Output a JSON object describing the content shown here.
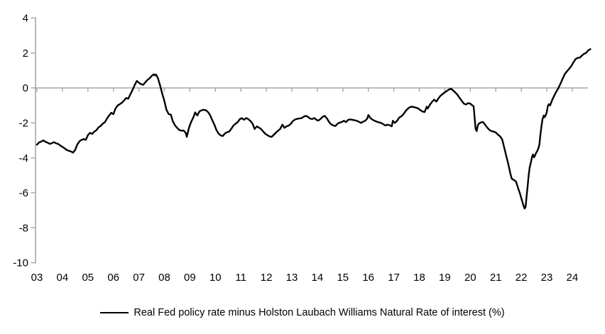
{
  "chart_data": {
    "type": "line",
    "title": "",
    "legend_label": "Real Fed policy rate minus Holston Laubach Williams Natural Rate of interest (%)",
    "legend_position": "bottom-center",
    "line_color": "#000000",
    "axis_color": "#a6a6a6",
    "text_color": "#000000",
    "grid": "zero-line-only",
    "x_range": [
      2003,
      2024.75
    ],
    "y_range": [
      -10,
      4
    ],
    "y_ticks": [
      4,
      2,
      0,
      -2,
      -4,
      -6,
      -8,
      -10
    ],
    "x_tick_labels": [
      "03",
      "04",
      "05",
      "06",
      "07",
      "08",
      "09",
      "10",
      "11",
      "12",
      "13",
      "14",
      "15",
      "16",
      "17",
      "18",
      "19",
      "20",
      "21",
      "22",
      "23",
      "24"
    ],
    "x_tick_years": [
      2003,
      2004,
      2005,
      2006,
      2007,
      2008,
      2009,
      2010,
      2011,
      2012,
      2013,
      2014,
      2015,
      2016,
      2017,
      2018,
      2019,
      2020,
      2021,
      2022,
      2023,
      2024
    ],
    "series": [
      {
        "name": "Real Fed policy rate minus Holston Laubach Williams Natural Rate of interest (%)",
        "points": [
          [
            2003.0,
            -3.25
          ],
          [
            2003.08,
            -3.12
          ],
          [
            2003.17,
            -3.07
          ],
          [
            2003.25,
            -3.0
          ],
          [
            2003.33,
            -3.08
          ],
          [
            2003.42,
            -3.13
          ],
          [
            2003.5,
            -3.2
          ],
          [
            2003.58,
            -3.17
          ],
          [
            2003.67,
            -3.1
          ],
          [
            2003.75,
            -3.17
          ],
          [
            2003.83,
            -3.2
          ],
          [
            2003.92,
            -3.3
          ],
          [
            2004.0,
            -3.37
          ],
          [
            2004.08,
            -3.45
          ],
          [
            2004.17,
            -3.55
          ],
          [
            2004.25,
            -3.6
          ],
          [
            2004.33,
            -3.63
          ],
          [
            2004.42,
            -3.7
          ],
          [
            2004.5,
            -3.55
          ],
          [
            2004.58,
            -3.25
          ],
          [
            2004.67,
            -3.05
          ],
          [
            2004.75,
            -2.97
          ],
          [
            2004.83,
            -2.93
          ],
          [
            2004.92,
            -2.97
          ],
          [
            2005.0,
            -2.7
          ],
          [
            2005.08,
            -2.57
          ],
          [
            2005.17,
            -2.63
          ],
          [
            2005.25,
            -2.5
          ],
          [
            2005.33,
            -2.42
          ],
          [
            2005.42,
            -2.25
          ],
          [
            2005.5,
            -2.17
          ],
          [
            2005.58,
            -2.05
          ],
          [
            2005.67,
            -1.95
          ],
          [
            2005.75,
            -1.75
          ],
          [
            2005.83,
            -1.58
          ],
          [
            2005.92,
            -1.42
          ],
          [
            2006.0,
            -1.5
          ],
          [
            2006.08,
            -1.18
          ],
          [
            2006.17,
            -1.0
          ],
          [
            2006.25,
            -0.93
          ],
          [
            2006.33,
            -0.85
          ],
          [
            2006.42,
            -0.72
          ],
          [
            2006.5,
            -0.57
          ],
          [
            2006.58,
            -0.62
          ],
          [
            2006.67,
            -0.35
          ],
          [
            2006.75,
            -0.12
          ],
          [
            2006.83,
            0.15
          ],
          [
            2006.92,
            0.4
          ],
          [
            2007.0,
            0.3
          ],
          [
            2007.08,
            0.22
          ],
          [
            2007.17,
            0.18
          ],
          [
            2007.25,
            0.32
          ],
          [
            2007.33,
            0.45
          ],
          [
            2007.42,
            0.55
          ],
          [
            2007.5,
            0.68
          ],
          [
            2007.58,
            0.78
          ],
          [
            2007.63,
            0.72
          ],
          [
            2007.67,
            0.77
          ],
          [
            2007.75,
            0.55
          ],
          [
            2007.83,
            0.15
          ],
          [
            2007.92,
            -0.35
          ],
          [
            2008.0,
            -0.75
          ],
          [
            2008.08,
            -1.25
          ],
          [
            2008.17,
            -1.5
          ],
          [
            2008.25,
            -1.52
          ],
          [
            2008.33,
            -1.9
          ],
          [
            2008.42,
            -2.15
          ],
          [
            2008.5,
            -2.28
          ],
          [
            2008.58,
            -2.4
          ],
          [
            2008.67,
            -2.45
          ],
          [
            2008.75,
            -2.43
          ],
          [
            2008.83,
            -2.55
          ],
          [
            2008.88,
            -2.8
          ],
          [
            2008.96,
            -2.3
          ],
          [
            2009.04,
            -1.98
          ],
          [
            2009.13,
            -1.7
          ],
          [
            2009.21,
            -1.4
          ],
          [
            2009.29,
            -1.58
          ],
          [
            2009.38,
            -1.33
          ],
          [
            2009.46,
            -1.28
          ],
          [
            2009.54,
            -1.25
          ],
          [
            2009.63,
            -1.28
          ],
          [
            2009.71,
            -1.38
          ],
          [
            2009.79,
            -1.55
          ],
          [
            2009.88,
            -1.85
          ],
          [
            2009.96,
            -2.1
          ],
          [
            2010.04,
            -2.4
          ],
          [
            2010.13,
            -2.62
          ],
          [
            2010.21,
            -2.72
          ],
          [
            2010.29,
            -2.75
          ],
          [
            2010.38,
            -2.6
          ],
          [
            2010.46,
            -2.53
          ],
          [
            2010.54,
            -2.5
          ],
          [
            2010.63,
            -2.33
          ],
          [
            2010.71,
            -2.15
          ],
          [
            2010.79,
            -2.05
          ],
          [
            2010.88,
            -1.95
          ],
          [
            2010.96,
            -1.78
          ],
          [
            2011.04,
            -1.73
          ],
          [
            2011.13,
            -1.82
          ],
          [
            2011.21,
            -1.72
          ],
          [
            2011.29,
            -1.78
          ],
          [
            2011.38,
            -1.9
          ],
          [
            2011.46,
            -2.05
          ],
          [
            2011.54,
            -2.35
          ],
          [
            2011.63,
            -2.2
          ],
          [
            2011.71,
            -2.27
          ],
          [
            2011.79,
            -2.35
          ],
          [
            2011.88,
            -2.5
          ],
          [
            2011.96,
            -2.63
          ],
          [
            2012.04,
            -2.7
          ],
          [
            2012.13,
            -2.78
          ],
          [
            2012.21,
            -2.8
          ],
          [
            2012.29,
            -2.68
          ],
          [
            2012.38,
            -2.55
          ],
          [
            2012.46,
            -2.45
          ],
          [
            2012.54,
            -2.35
          ],
          [
            2012.63,
            -2.1
          ],
          [
            2012.71,
            -2.28
          ],
          [
            2012.79,
            -2.2
          ],
          [
            2012.88,
            -2.15
          ],
          [
            2012.96,
            -2.05
          ],
          [
            2013.04,
            -1.9
          ],
          [
            2013.13,
            -1.8
          ],
          [
            2013.21,
            -1.77
          ],
          [
            2013.29,
            -1.75
          ],
          [
            2013.38,
            -1.73
          ],
          [
            2013.46,
            -1.65
          ],
          [
            2013.54,
            -1.6
          ],
          [
            2013.63,
            -1.65
          ],
          [
            2013.71,
            -1.75
          ],
          [
            2013.79,
            -1.78
          ],
          [
            2013.88,
            -1.72
          ],
          [
            2013.96,
            -1.82
          ],
          [
            2014.04,
            -1.87
          ],
          [
            2014.13,
            -1.77
          ],
          [
            2014.21,
            -1.65
          ],
          [
            2014.29,
            -1.6
          ],
          [
            2014.38,
            -1.75
          ],
          [
            2014.46,
            -1.95
          ],
          [
            2014.54,
            -2.08
          ],
          [
            2014.63,
            -2.15
          ],
          [
            2014.71,
            -2.18
          ],
          [
            2014.79,
            -2.05
          ],
          [
            2014.88,
            -1.98
          ],
          [
            2014.96,
            -1.95
          ],
          [
            2015.04,
            -1.88
          ],
          [
            2015.13,
            -1.95
          ],
          [
            2015.21,
            -1.83
          ],
          [
            2015.29,
            -1.8
          ],
          [
            2015.38,
            -1.82
          ],
          [
            2015.46,
            -1.85
          ],
          [
            2015.54,
            -1.88
          ],
          [
            2015.63,
            -1.93
          ],
          [
            2015.71,
            -2.0
          ],
          [
            2015.79,
            -1.93
          ],
          [
            2015.88,
            -1.88
          ],
          [
            2015.96,
            -1.75
          ],
          [
            2016.0,
            -1.55
          ],
          [
            2016.08,
            -1.72
          ],
          [
            2016.17,
            -1.82
          ],
          [
            2016.25,
            -1.88
          ],
          [
            2016.33,
            -1.93
          ],
          [
            2016.42,
            -1.97
          ],
          [
            2016.5,
            -2.0
          ],
          [
            2016.58,
            -2.07
          ],
          [
            2016.67,
            -2.15
          ],
          [
            2016.75,
            -2.1
          ],
          [
            2016.83,
            -2.13
          ],
          [
            2016.92,
            -2.2
          ],
          [
            2016.96,
            -1.88
          ],
          [
            2017.04,
            -2.0
          ],
          [
            2017.13,
            -1.88
          ],
          [
            2017.21,
            -1.7
          ],
          [
            2017.29,
            -1.63
          ],
          [
            2017.38,
            -1.5
          ],
          [
            2017.46,
            -1.33
          ],
          [
            2017.54,
            -1.2
          ],
          [
            2017.63,
            -1.1
          ],
          [
            2017.71,
            -1.07
          ],
          [
            2017.79,
            -1.1
          ],
          [
            2017.88,
            -1.13
          ],
          [
            2017.96,
            -1.18
          ],
          [
            2018.04,
            -1.27
          ],
          [
            2018.13,
            -1.35
          ],
          [
            2018.21,
            -1.38
          ],
          [
            2018.29,
            -1.07
          ],
          [
            2018.33,
            -1.18
          ],
          [
            2018.42,
            -0.95
          ],
          [
            2018.5,
            -0.8
          ],
          [
            2018.58,
            -0.67
          ],
          [
            2018.67,
            -0.78
          ],
          [
            2018.75,
            -0.6
          ],
          [
            2018.83,
            -0.45
          ],
          [
            2018.92,
            -0.35
          ],
          [
            2019.0,
            -0.25
          ],
          [
            2019.08,
            -0.17
          ],
          [
            2019.17,
            -0.08
          ],
          [
            2019.25,
            -0.05
          ],
          [
            2019.33,
            -0.15
          ],
          [
            2019.42,
            -0.27
          ],
          [
            2019.5,
            -0.4
          ],
          [
            2019.58,
            -0.57
          ],
          [
            2019.67,
            -0.75
          ],
          [
            2019.75,
            -0.9
          ],
          [
            2019.83,
            -0.95
          ],
          [
            2019.92,
            -0.87
          ],
          [
            2020.0,
            -0.9
          ],
          [
            2020.08,
            -1.0
          ],
          [
            2020.13,
            -1.05
          ],
          [
            2020.17,
            -1.7
          ],
          [
            2020.21,
            -2.35
          ],
          [
            2020.25,
            -2.47
          ],
          [
            2020.29,
            -2.18
          ],
          [
            2020.33,
            -2.05
          ],
          [
            2020.42,
            -1.97
          ],
          [
            2020.5,
            -1.95
          ],
          [
            2020.58,
            -2.1
          ],
          [
            2020.67,
            -2.28
          ],
          [
            2020.75,
            -2.4
          ],
          [
            2020.83,
            -2.47
          ],
          [
            2020.92,
            -2.5
          ],
          [
            2021.0,
            -2.55
          ],
          [
            2021.08,
            -2.67
          ],
          [
            2021.17,
            -2.77
          ],
          [
            2021.25,
            -2.95
          ],
          [
            2021.33,
            -3.4
          ],
          [
            2021.42,
            -3.95
          ],
          [
            2021.5,
            -4.4
          ],
          [
            2021.58,
            -4.95
          ],
          [
            2021.63,
            -5.2
          ],
          [
            2021.71,
            -5.27
          ],
          [
            2021.79,
            -5.35
          ],
          [
            2021.88,
            -5.75
          ],
          [
            2021.96,
            -6.1
          ],
          [
            2022.04,
            -6.5
          ],
          [
            2022.08,
            -6.7
          ],
          [
            2022.13,
            -6.9
          ],
          [
            2022.17,
            -6.8
          ],
          [
            2022.21,
            -6.2
          ],
          [
            2022.25,
            -5.6
          ],
          [
            2022.29,
            -5.0
          ],
          [
            2022.33,
            -4.55
          ],
          [
            2022.38,
            -4.25
          ],
          [
            2022.42,
            -3.95
          ],
          [
            2022.46,
            -3.8
          ],
          [
            2022.5,
            -3.97
          ],
          [
            2022.54,
            -3.87
          ],
          [
            2022.58,
            -3.72
          ],
          [
            2022.63,
            -3.6
          ],
          [
            2022.67,
            -3.45
          ],
          [
            2022.71,
            -3.25
          ],
          [
            2022.75,
            -2.68
          ],
          [
            2022.79,
            -2.2
          ],
          [
            2022.83,
            -1.8
          ],
          [
            2022.88,
            -1.58
          ],
          [
            2022.92,
            -1.67
          ],
          [
            2022.96,
            -1.55
          ],
          [
            2023.0,
            -1.38
          ],
          [
            2023.04,
            -1.05
          ],
          [
            2023.08,
            -0.93
          ],
          [
            2023.13,
            -1.0
          ],
          [
            2023.21,
            -0.7
          ],
          [
            2023.29,
            -0.45
          ],
          [
            2023.38,
            -0.2
          ],
          [
            2023.46,
            0.0
          ],
          [
            2023.54,
            0.25
          ],
          [
            2023.63,
            0.55
          ],
          [
            2023.71,
            0.8
          ],
          [
            2023.79,
            0.95
          ],
          [
            2023.88,
            1.1
          ],
          [
            2023.96,
            1.25
          ],
          [
            2024.04,
            1.45
          ],
          [
            2024.13,
            1.65
          ],
          [
            2024.21,
            1.72
          ],
          [
            2024.29,
            1.73
          ],
          [
            2024.38,
            1.85
          ],
          [
            2024.46,
            1.95
          ],
          [
            2024.54,
            2.0
          ],
          [
            2024.63,
            2.15
          ],
          [
            2024.71,
            2.22
          ]
        ]
      }
    ]
  }
}
